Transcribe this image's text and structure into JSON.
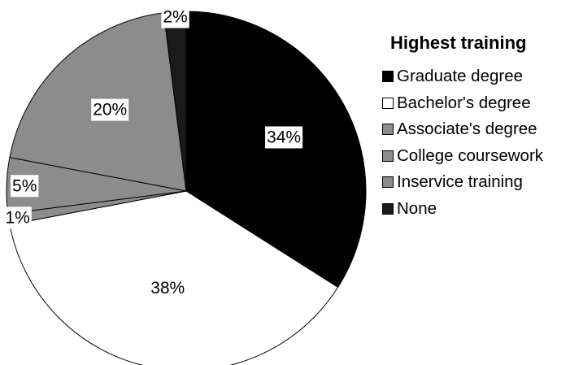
{
  "chart_data": {
    "type": "pie",
    "legend_title": "Highest training",
    "legend_position": "right",
    "slices": [
      {
        "label": "Graduate degree",
        "value": 34,
        "display": "34%",
        "color": "#000000"
      },
      {
        "label": "Bachelor's degree",
        "value": 38,
        "display": "38%",
        "color": "#ffffff"
      },
      {
        "label": "Associate's degree",
        "value": 1,
        "display": "1%",
        "color": "#8c8c8c"
      },
      {
        "label": "College coursework",
        "value": 5,
        "display": "5%",
        "color": "#8c8c8c"
      },
      {
        "label": "Inservice training",
        "value": 20,
        "display": "20%",
        "color": "#8c8c8c"
      },
      {
        "label": "None",
        "value": 2,
        "display": "2%",
        "color": "#1a1a1a"
      }
    ]
  }
}
